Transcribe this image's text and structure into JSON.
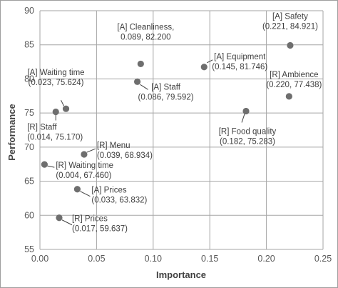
{
  "chart_data": {
    "type": "scatter",
    "title": "",
    "xlabel": "Importance",
    "ylabel": "Performance",
    "xlim": [
      0,
      0.25
    ],
    "ylim": [
      55,
      90
    ],
    "x_ticks": [
      0,
      0.05,
      0.1,
      0.15,
      0.2,
      0.25
    ],
    "x_tick_labels": [
      "0.00",
      "0.05",
      "0.10",
      "0.15",
      "0.20",
      "0.25"
    ],
    "y_ticks": [
      55,
      60,
      65,
      70,
      75,
      80,
      85,
      90
    ],
    "y_tick_labels": [
      "55",
      "60",
      "65",
      "70",
      "75",
      "80",
      "85",
      "90"
    ],
    "grid": true,
    "marker_color": "#6e6e6e",
    "points": [
      {
        "x": 0.221,
        "y": 84.921,
        "name": "[A] Safety",
        "coords": "(0.221, 84.921)"
      },
      {
        "x": 0.089,
        "y": 82.2,
        "name": "[A] Cleanliness,",
        "coords": "0.089, 82.200"
      },
      {
        "x": 0.145,
        "y": 81.746,
        "name": "[A] Equipment",
        "coords": "(0.145, 81.746)"
      },
      {
        "x": 0.22,
        "y": 77.438,
        "name": "[R] Ambience",
        "coords": "(0.220, 77.438)"
      },
      {
        "x": 0.086,
        "y": 79.592,
        "name": "[A] Staff",
        "coords": "(0.086, 79.592)"
      },
      {
        "x": 0.023,
        "y": 75.624,
        "name": "[A] Waiting time",
        "coords": "(0.023, 75.624)"
      },
      {
        "x": 0.014,
        "y": 75.17,
        "name": "[R] Staff",
        "coords": "(0.014, 75.170)"
      },
      {
        "x": 0.182,
        "y": 75.283,
        "name": "[R] Food quality",
        "coords": "(0.182, 75.283)"
      },
      {
        "x": 0.039,
        "y": 68.934,
        "name": "[R] Menu",
        "coords": "(0.039, 68.934)"
      },
      {
        "x": 0.004,
        "y": 67.46,
        "name": "[R] Waiting time",
        "coords": "(0.004, 67.460)"
      },
      {
        "x": 0.033,
        "y": 63.832,
        "name": "[A] Prices",
        "coords": "(0.033, 63.832)"
      },
      {
        "x": 0.017,
        "y": 59.637,
        "name": "[R] Prices",
        "coords": "(0.017, 59.637)"
      }
    ]
  }
}
